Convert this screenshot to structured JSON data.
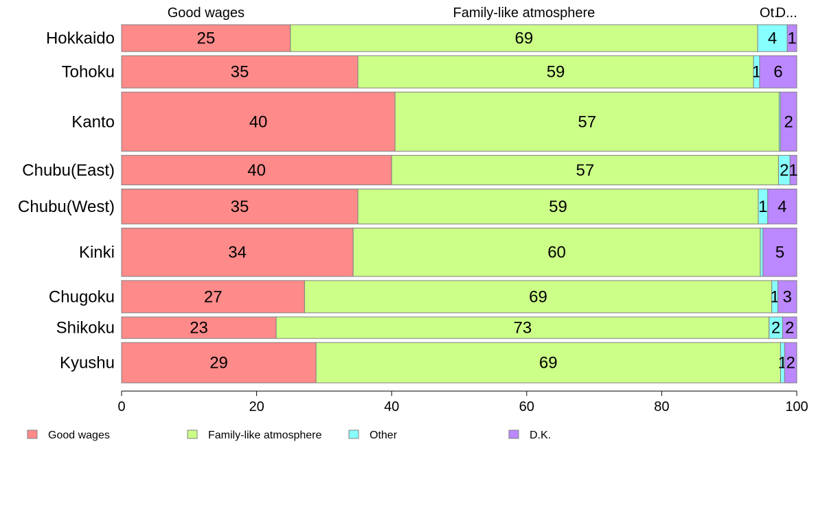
{
  "chart_data": {
    "type": "bar",
    "orientation": "horizontal",
    "stacked": true,
    "categories": [
      "Hokkaido",
      "Tohoku",
      "Kanto",
      "Chubu(East)",
      "Chubu(West)",
      "Kinki",
      "Chugoku",
      "Shikoku",
      "Kyushu"
    ],
    "bar_weights": [
      1.0,
      1.2,
      2.2,
      1.1,
      1.3,
      1.8,
      1.2,
      0.8,
      1.5
    ],
    "series": [
      {
        "name": "Good wages",
        "color": "#ff8a8a",
        "values": [
          25,
          35,
          40.5,
          40,
          35,
          34.3,
          27.1,
          22.9,
          28.8
        ],
        "labels": [
          "25",
          "35",
          "40",
          "40",
          "35",
          "34",
          "27",
          "23",
          "29"
        ]
      },
      {
        "name": "Family-like atmosphere",
        "color": "#ccff88",
        "values": [
          69.2,
          58.6,
          56.9,
          57.3,
          59.3,
          60.3,
          69.2,
          73,
          68.8
        ],
        "labels": [
          "69",
          "59",
          "57",
          "57",
          "59",
          "60",
          "69",
          "73",
          "69"
        ]
      },
      {
        "name": "Other",
        "color": "#88ffff",
        "values": [
          4.4,
          0.9,
          0.2,
          1.7,
          1.4,
          0.4,
          0.9,
          2,
          0.6
        ],
        "labels": [
          "4",
          "1",
          "",
          "2",
          "1",
          "",
          "1",
          "2",
          "1"
        ]
      },
      {
        "name": "D.K.",
        "color": "#bb88ff",
        "values": [
          1.4,
          5.5,
          2.4,
          1,
          4.3,
          5,
          2.8,
          2.1,
          1.8
        ],
        "labels": [
          "1",
          "6",
          "2",
          "1",
          "4",
          "5",
          "3",
          "2",
          "2"
        ]
      }
    ],
    "top_labels": [
      "Good wages",
      "Family-like atmosphere",
      "Ot.",
      "D..."
    ],
    "x_ticks": [
      "0",
      "20",
      "40",
      "60",
      "80",
      "100"
    ],
    "xlim": [
      0,
      100
    ],
    "legend": {
      "position": "bottom",
      "entries": [
        "Good wages",
        "Family-like atmosphere",
        "Other",
        "D.K."
      ]
    },
    "grid": false
  }
}
